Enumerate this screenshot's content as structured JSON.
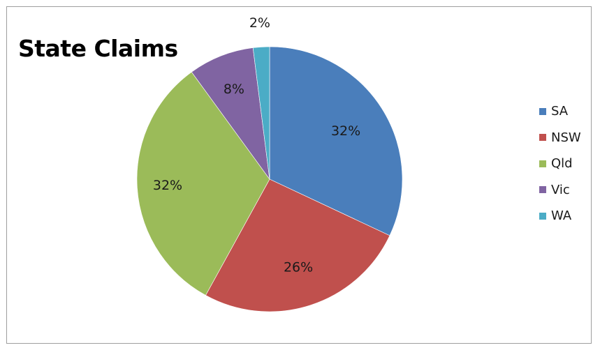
{
  "chart_data": {
    "type": "pie",
    "title": "State Claims",
    "categories": [
      "SA",
      "NSW",
      "Qld",
      "Vic",
      "WA"
    ],
    "values": [
      32,
      26,
      32,
      8,
      2
    ],
    "labels": [
      "32%",
      "26%",
      "32%",
      "8%",
      "2%"
    ],
    "colors": [
      "#4a7ebb",
      "#c0504d",
      "#9bbb59",
      "#8064a2",
      "#4bacc6"
    ],
    "legend_position": "right"
  }
}
